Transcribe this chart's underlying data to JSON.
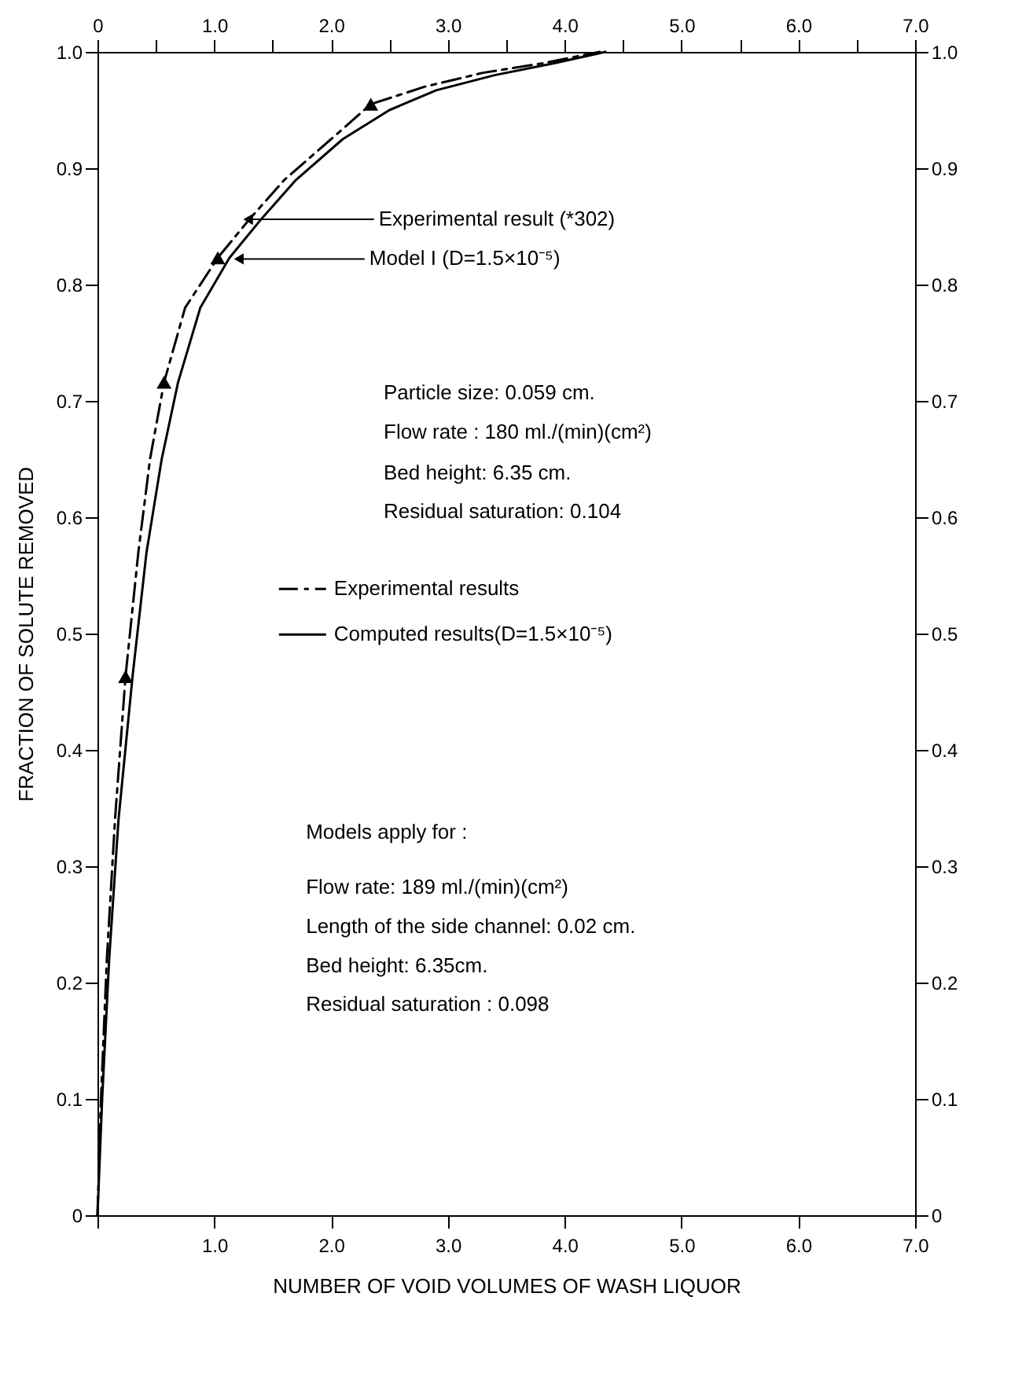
{
  "chart_data": {
    "type": "line",
    "xlabel": "NUMBER OF VOID VOLUMES OF WASH LIQUOR",
    "ylabel": "FRACTION OF SOLUTE REMOVED",
    "xlim": [
      0,
      7
    ],
    "ylim": [
      0,
      1
    ],
    "x2lim": [
      0,
      7
    ],
    "y2lim": [
      0,
      1
    ],
    "xticks": [
      {
        "value": 0,
        "label": null
      },
      {
        "value": 0.5,
        "label": null
      },
      {
        "value": 1,
        "label": "1.0"
      },
      {
        "value": 1.5,
        "label": null
      },
      {
        "value": 2,
        "label": "2.0"
      },
      {
        "value": 2.5,
        "label": null
      },
      {
        "value": 3,
        "label": "3.0"
      },
      {
        "value": 3.5,
        "label": null
      },
      {
        "value": 4,
        "label": "4.0"
      },
      {
        "value": 4.5,
        "label": null
      },
      {
        "value": 5,
        "label": "5.0"
      },
      {
        "value": 5.5,
        "label": null
      },
      {
        "value": 6,
        "label": "6.0"
      },
      {
        "value": 6.5,
        "label": null
      },
      {
        "value": 7,
        "label": "7.0"
      }
    ],
    "x2ticks": [
      0,
      {
        "value": 0.5,
        "label": null
      },
      {
        "value": 1,
        "label": "1.0"
      },
      {
        "value": 1.5,
        "label": null
      },
      {
        "value": 2,
        "label": "2.0"
      },
      {
        "value": 2.5,
        "label": null
      },
      {
        "value": 3,
        "label": "3.0"
      },
      {
        "value": 3.5,
        "label": null
      },
      {
        "value": 4,
        "label": "4.0"
      },
      {
        "value": 4.5,
        "label": null
      },
      {
        "value": 5,
        "label": "5.0"
      },
      {
        "value": 5.5,
        "label": null
      },
      {
        "value": 6,
        "label": "6.0"
      },
      {
        "value": 6.5,
        "label": null
      },
      {
        "value": 7,
        "label": "7.0"
      }
    ],
    "yticks": [
      0,
      0.1,
      0.2,
      0.3,
      0.4,
      0.5,
      0.6,
      0.7,
      0.8,
      0.9,
      {
        "value": 1,
        "label": "1.0"
      }
    ],
    "y2ticks": [
      0,
      0.1,
      0.2,
      0.3,
      0.4,
      0.5,
      0.6,
      0.7,
      0.8,
      0.9,
      {
        "value": 1,
        "label": "1.0"
      }
    ],
    "grid": false,
    "legend": "left",
    "series": [
      {
        "name": "Experimental results",
        "color": "#000000",
        "line_style": "dashed",
        "x": [
          0,
          0.03,
          0.08,
          0.15,
          0.24,
          0.35,
          0.45,
          0.57,
          0.75,
          1.03,
          1.3,
          1.6,
          2.0,
          2.34,
          2.8,
          3.3,
          3.8,
          4.3
        ],
        "values": [
          0,
          0.1,
          0.22,
          0.34,
          0.463,
          0.57,
          0.65,
          0.716,
          0.78,
          0.823,
          0.856,
          0.89,
          0.925,
          0.955,
          0.97,
          0.982,
          0.99,
          1.0
        ]
      },
      {
        "name": "Computed results(D=1.5×10⁻⁵)",
        "color": "#000000",
        "line_style": "solid",
        "x": [
          0,
          0.04,
          0.1,
          0.18,
          0.3,
          0.42,
          0.55,
          0.69,
          0.88,
          1.13,
          1.4,
          1.7,
          2.1,
          2.5,
          2.9,
          3.4,
          3.9,
          4.35
        ],
        "values": [
          0,
          0.1,
          0.22,
          0.34,
          0.463,
          0.57,
          0.65,
          0.716,
          0.78,
          0.823,
          0.856,
          0.89,
          0.925,
          0.95,
          0.967,
          0.98,
          0.99,
          1.0
        ]
      },
      {
        "type": "scatter",
        "color": "#000000",
        "marker": "triangle",
        "x": [
          0.24,
          0.57,
          1.03,
          2.34
        ],
        "values": [
          0.463,
          0.716,
          0.823,
          0.955
        ]
      }
    ],
    "annotations": [
      {
        "text": "Experimental result (*302)",
        "x": 1.29,
        "y": 0.856
      },
      {
        "text": "Model I (D=1.5×10⁻⁵)",
        "x": 1.21,
        "y": 0.822
      },
      "Particle size: 0.059 cm.",
      "Flow rate : 180 ml./(min)(cm²)",
      "Bed height: 6.35 cm.",
      "Residual saturation: 0.104",
      "Models apply for :",
      "Flow rate: 189 ml./(min)(cm²)",
      "Length of the side channel: 0.02 cm.",
      "Bed height: 6.35cm.",
      "Residual saturation : 0.098"
    ]
  }
}
